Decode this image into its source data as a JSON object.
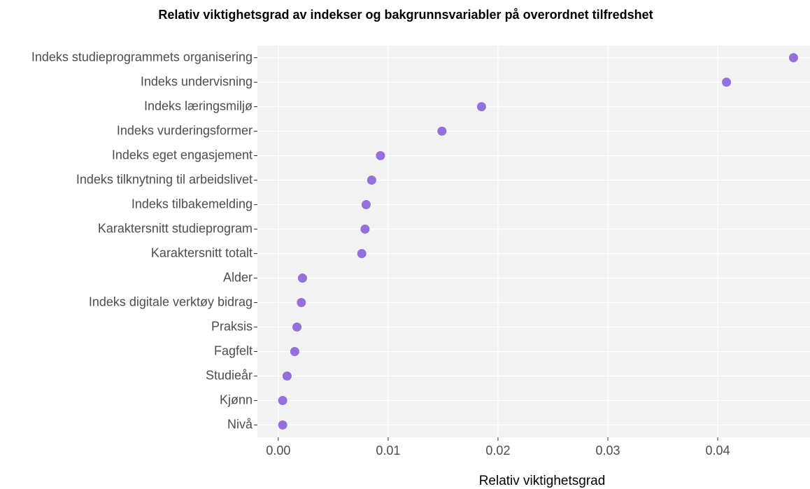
{
  "chart_data": {
    "type": "dot",
    "title": "Relativ viktighetsgrad av indekser og bakgrunnsvariabler på overordnet tilfredshet",
    "x_label": "Relativ viktighetsgrad",
    "categories": [
      "Indeks studieprogrammets organisering",
      "Indeks undervisning",
      "Indeks læringsmiljø",
      "Indeks vurderingsformer",
      "Indeks eget engasjement",
      "Indeks tilknytning til arbeidslivet",
      "Indeks tilbakemelding",
      "Karaktersnitt studieprogram",
      "Karaktersnitt totalt",
      "Alder",
      "Indeks digitale verktøy bidrag",
      "Praksis",
      "Fagfelt",
      "Studieår",
      "Kjønn",
      "Nivå"
    ],
    "values": [
      0.0469,
      0.0408,
      0.0185,
      0.0149,
      0.0093,
      0.0085,
      0.008,
      0.0079,
      0.0076,
      0.0022,
      0.0021,
      0.0017,
      0.0015,
      0.0008,
      0.0004,
      0.0004
    ],
    "color": "#9370db",
    "xlim": [
      -0.0019,
      0.0484
    ],
    "xticks": [
      {
        "value": 0,
        "label": "0.00"
      },
      {
        "value": 0.01,
        "label": "0.01"
      },
      {
        "value": 0.02,
        "label": "0.02"
      },
      {
        "value": 0.03,
        "label": "0.03"
      },
      {
        "value": 0.04,
        "label": "0.04"
      }
    ],
    "grid": true
  }
}
